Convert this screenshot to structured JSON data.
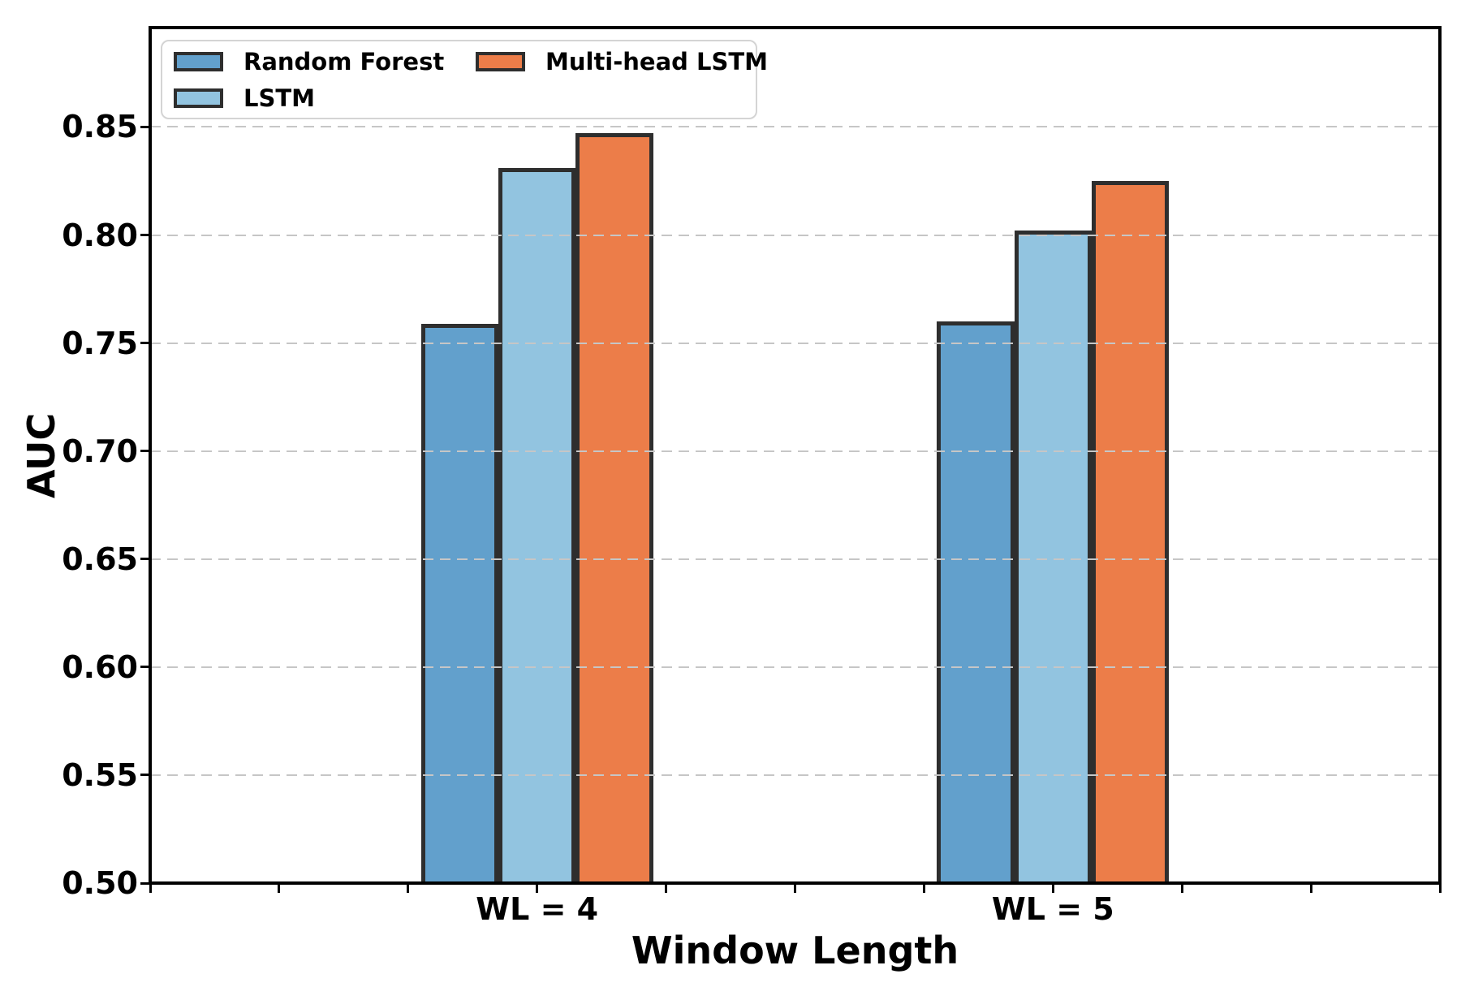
{
  "chart_data": {
    "type": "bar",
    "title": "",
    "xlabel": "Window Length",
    "ylabel": "AUC",
    "categories": [
      "WL = 4",
      "WL = 5"
    ],
    "category_positions": [
      3,
      7
    ],
    "xlim": [
      0,
      10
    ],
    "x_tick_positions": [
      0,
      1,
      2,
      3,
      4,
      5,
      6,
      7,
      8,
      9,
      10
    ],
    "ylim": [
      0.5,
      0.896
    ],
    "yticks": [
      0.5,
      0.55,
      0.6,
      0.65,
      0.7,
      0.75,
      0.8,
      0.85
    ],
    "ytick_format_decimals": 2,
    "series": [
      {
        "name": "Random Forest",
        "color": "#62a0cc",
        "values": [
          0.759,
          0.76
        ]
      },
      {
        "name": "LSTM",
        "color": "#92c4e0",
        "values": [
          0.831,
          0.802
        ]
      },
      {
        "name": "Multi-head LSTM",
        "color": "#ec7d49",
        "values": [
          0.847,
          0.825
        ]
      }
    ],
    "bar_width_units": 0.6,
    "bar_edge_color": "#2e2e2e",
    "grid": {
      "show": true,
      "axis": "y",
      "style": "dashed",
      "color": "#c6c6c6",
      "above_bars": true
    },
    "legend": {
      "position": "upper-left",
      "columns": 2,
      "fill_order": "column-major"
    }
  }
}
